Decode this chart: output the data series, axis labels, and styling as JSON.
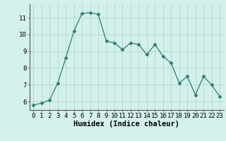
{
  "x": [
    0,
    1,
    2,
    3,
    4,
    5,
    6,
    7,
    8,
    9,
    10,
    11,
    12,
    13,
    14,
    15,
    16,
    17,
    18,
    19,
    20,
    21,
    22,
    23
  ],
  "y": [
    5.8,
    5.9,
    6.1,
    7.1,
    8.6,
    10.2,
    11.25,
    11.3,
    11.2,
    9.6,
    9.5,
    9.1,
    9.5,
    9.4,
    8.8,
    9.4,
    8.7,
    8.3,
    7.1,
    7.5,
    6.4,
    7.5,
    7.0,
    6.3
  ],
  "line_color": "#2e7d6e",
  "marker": "D",
  "marker_size": 2.5,
  "bg_color": "#d4f0ec",
  "grid_color": "#b0d8d3",
  "xlabel": "Humidex (Indice chaleur)",
  "xlim": [
    -0.5,
    23.5
  ],
  "ylim": [
    5.5,
    11.8
  ],
  "yticks": [
    6,
    7,
    8,
    9,
    10,
    11
  ],
  "xticks": [
    0,
    1,
    2,
    3,
    4,
    5,
    6,
    7,
    8,
    9,
    10,
    11,
    12,
    13,
    14,
    15,
    16,
    17,
    18,
    19,
    20,
    21,
    22,
    23
  ],
  "tick_fontsize": 6.5,
  "xlabel_fontsize": 7.5
}
